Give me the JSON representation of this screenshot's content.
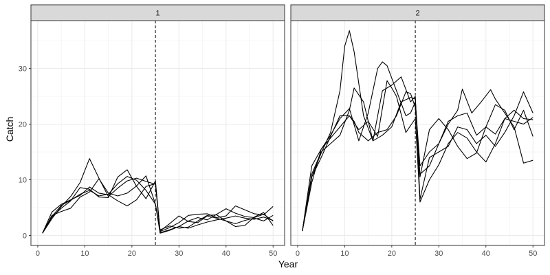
{
  "chart_data": {
    "type": "line",
    "xlabel": "Year",
    "ylabel": "Catch",
    "xlim": [
      -1.45,
      52.45
    ],
    "ylim": [
      -1.8,
      38.6
    ],
    "x_ticks": [
      0,
      10,
      20,
      30,
      40,
      50
    ],
    "y_ticks": [
      0,
      10,
      20,
      30
    ],
    "grid": true,
    "line_color": "#000000",
    "vline": {
      "x": 25,
      "style": "dashed"
    },
    "panels": [
      {
        "strip": "1",
        "series": [
          {
            "x": [
              1,
              3,
              5,
              7,
              9,
              11,
              13,
              15,
              17,
              19,
              21,
              23,
              25,
              26,
              28,
              30,
              32,
              34,
              36,
              38,
              40,
              42,
              44,
              46,
              48,
              50
            ],
            "values": [
              0.4,
              3.0,
              5.2,
              7.0,
              9.5,
              13.8,
              10.3,
              7.0,
              8.5,
              9.8,
              10.3,
              9.7,
              9.2,
              0.5,
              1.0,
              1.6,
              2.6,
              3.2,
              2.8,
              3.8,
              4.8,
              4.0,
              3.4,
              3.2,
              3.8,
              2.6
            ]
          },
          {
            "x": [
              1,
              3,
              5,
              7,
              9,
              11,
              13,
              15,
              17,
              19,
              21,
              23,
              25,
              26,
              28,
              30,
              32,
              34,
              36,
              38,
              40,
              42,
              44,
              46,
              48,
              50
            ],
            "values": [
              0.4,
              3.3,
              4.9,
              6.2,
              8.6,
              8.3,
              6.9,
              6.8,
              10.5,
              11.8,
              8.8,
              6.6,
              9.8,
              0.7,
              1.4,
              2.3,
              3.6,
              3.8,
              3.9,
              3.2,
              3.5,
              5.3,
              4.6,
              3.9,
              3.7,
              5.2
            ]
          },
          {
            "x": [
              1,
              3,
              5,
              7,
              9,
              11,
              13,
              15,
              17,
              19,
              21,
              23,
              25,
              26,
              28,
              30,
              32,
              34,
              36,
              38,
              40,
              42,
              44,
              46,
              48,
              50
            ],
            "values": [
              0.4,
              4.2,
              5.6,
              6.4,
              7.2,
              8.7,
              7.6,
              7.3,
              6.2,
              5.3,
              6.4,
              8.8,
              9.3,
              0.8,
              2.1,
              3.5,
              2.5,
              2.3,
              3.5,
              3.1,
              2.6,
              1.6,
              1.8,
              3.3,
              4.1,
              1.8
            ]
          },
          {
            "x": [
              1,
              3,
              5,
              7,
              9,
              11,
              13,
              15,
              17,
              19,
              21,
              23,
              25,
              26,
              28,
              30,
              32,
              34,
              36,
              38,
              40,
              42,
              44,
              46,
              48,
              50
            ],
            "values": [
              0.4,
              3.6,
              4.3,
              4.9,
              6.9,
              7.8,
              10.2,
              7.6,
              7.1,
              7.6,
              8.9,
              10.7,
              5.6,
              0.4,
              0.9,
              1.6,
              1.3,
              1.9,
              2.4,
              2.8,
              3.1,
              3.5,
              3.1,
              2.9,
              3.3,
              2.7
            ]
          },
          {
            "x": [
              1,
              3,
              5,
              7,
              9,
              11,
              13,
              15,
              17,
              19,
              21,
              23,
              25,
              26,
              28,
              30,
              32,
              34,
              36,
              38,
              40,
              42,
              44,
              46,
              48,
              50
            ],
            "values": [
              0.4,
              3.4,
              5.4,
              6.3,
              7.4,
              8.1,
              7.1,
              7.4,
              9.3,
              10.6,
              9.9,
              8.1,
              5.6,
              1.0,
              1.7,
              1.3,
              1.5,
              2.6,
              3.6,
              3.7,
              2.6,
              2.1,
              2.7,
              3.1,
              2.6,
              3.6
            ]
          }
        ]
      },
      {
        "strip": "2",
        "series": [
          {
            "x": [
              1,
              3,
              5,
              7,
              9,
              10,
              11,
              12,
              14,
              16,
              18,
              20,
              22,
              24,
              25,
              26,
              28,
              30,
              32,
              34,
              36,
              38,
              40,
              42,
              44,
              46,
              48,
              50
            ],
            "values": [
              0.8,
              10.5,
              14.8,
              18.5,
              26.0,
              34.0,
              36.8,
              33.0,
              21.5,
              17.0,
              18.0,
              19.5,
              24.0,
              24.8,
              24.5,
              10.5,
              19.0,
              21.0,
              19.0,
              16.0,
              13.8,
              14.8,
              19.5,
              18.2,
              21.0,
              22.5,
              21.0,
              20.8
            ]
          },
          {
            "x": [
              1,
              3,
              5,
              7,
              9,
              11,
              12,
              14,
              16,
              18,
              20,
              22,
              24,
              25,
              26,
              28,
              30,
              32,
              34,
              36,
              38,
              40,
              42,
              44,
              46,
              48,
              50
            ],
            "values": [
              0.8,
              11.0,
              15.0,
              16.5,
              18.0,
              22.5,
              26.5,
              24.0,
              17.0,
              26.0,
              27.0,
              28.5,
              24.0,
              25.0,
              6.5,
              14.0,
              15.0,
              16.0,
              19.5,
              19.0,
              16.5,
              18.0,
              16.0,
              18.5,
              21.5,
              25.8,
              22.0
            ]
          },
          {
            "x": [
              1,
              3,
              5,
              7,
              9,
              11,
              13,
              15,
              17,
              18,
              19,
              21,
              23,
              24,
              25,
              26,
              28,
              30,
              32,
              34,
              36,
              38,
              40,
              42,
              44,
              46,
              48,
              50
            ],
            "values": [
              0.8,
              9.5,
              15.5,
              18.0,
              21.0,
              22.8,
              17.0,
              22.0,
              30.0,
              31.2,
              30.5,
              26.0,
              21.5,
              22.0,
              24.0,
              12.5,
              15.0,
              16.5,
              20.5,
              21.5,
              22.0,
              18.0,
              19.5,
              23.5,
              22.5,
              19.0,
              22.5,
              17.8
            ]
          },
          {
            "x": [
              1,
              3,
              5,
              7,
              9,
              11,
              13,
              15,
              17,
              19,
              20,
              21,
              23,
              25,
              26,
              28,
              30,
              32,
              34,
              36,
              38,
              40,
              42,
              44,
              46,
              48,
              50
            ],
            "values": [
              0.8,
              12.5,
              15.5,
              17.5,
              19.5,
              21.5,
              19.0,
              20.5,
              17.8,
              27.8,
              26.5,
              25.0,
              18.5,
              21.0,
              6.0,
              10.0,
              12.7,
              16.5,
              18.5,
              17.5,
              15.0,
              13.2,
              16.5,
              21.0,
              20.5,
              20.0,
              21.2
            ]
          },
          {
            "x": [
              1,
              3,
              5,
              7,
              9,
              11,
              12,
              13,
              15,
              17,
              19,
              21,
              23,
              24,
              25,
              26,
              28,
              30,
              32,
              34,
              35,
              37,
              39,
              41,
              42,
              44,
              46,
              48,
              50
            ],
            "values": [
              0.8,
              10.5,
              14.0,
              17.8,
              21.5,
              21.5,
              20.5,
              18.5,
              17.0,
              18.5,
              19.0,
              21.5,
              25.8,
              25.5,
              23.0,
              11.0,
              12.5,
              16.5,
              20.0,
              22.5,
              26.3,
              22.0,
              24.0,
              26.2,
              24.5,
              22.0,
              19.5,
              13.0,
              13.5
            ]
          }
        ]
      }
    ]
  }
}
